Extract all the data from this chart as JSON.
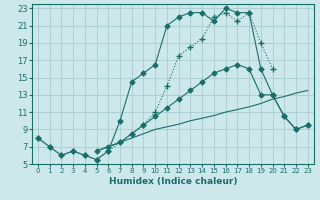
{
  "xlabel": "Humidex (Indice chaleur)",
  "bg_color": "#cce8ea",
  "grid_color": "#aaccce",
  "line_color": "#1a6e6a",
  "xlim": [
    -0.5,
    23.5
  ],
  "ylim": [
    5,
    23.5
  ],
  "xticks": [
    0,
    1,
    2,
    3,
    4,
    5,
    6,
    7,
    8,
    9,
    10,
    11,
    12,
    13,
    14,
    15,
    16,
    17,
    18,
    19,
    20,
    21,
    22,
    23
  ],
  "yticks": [
    5,
    7,
    9,
    11,
    13,
    15,
    17,
    19,
    21,
    23
  ],
  "lines": [
    {
      "x": [
        0,
        1,
        2,
        3,
        4,
        5,
        6,
        7,
        8,
        9,
        10,
        11,
        12,
        13,
        14,
        15,
        16,
        17,
        18,
        19,
        20
      ],
      "y": [
        8,
        7,
        6,
        6.5,
        6,
        5.5,
        6.5,
        7.5,
        8.5,
        9.5,
        11,
        14,
        17.5,
        18.5,
        19.5,
        22,
        22.5,
        21.5,
        22.5,
        19,
        16
      ],
      "linestyle": "dotted",
      "marker": "+",
      "markersize": 4
    },
    {
      "x": [
        0,
        1,
        2,
        3,
        4,
        5,
        6,
        7,
        8,
        9,
        10,
        11,
        12,
        13,
        14,
        15,
        16,
        17,
        18,
        19,
        20,
        21,
        22,
        23
      ],
      "y": [
        8,
        7,
        6,
        6.5,
        6,
        5.5,
        6.5,
        10,
        14.5,
        15.5,
        16.5,
        21,
        22,
        22.5,
        22.5,
        21.5,
        23,
        22.5,
        22.5,
        16,
        13,
        10.5,
        9,
        9.5
      ],
      "linestyle": "solid",
      "marker": "D",
      "markersize": 2.5
    },
    {
      "x": [
        5,
        6,
        7,
        8,
        9,
        10,
        11,
        12,
        13,
        14,
        15,
        16,
        17,
        18,
        19,
        20,
        21,
        22,
        23
      ],
      "y": [
        6.5,
        7,
        7.5,
        8,
        8.5,
        9,
        9.3,
        9.6,
        10,
        10.3,
        10.6,
        11,
        11.3,
        11.6,
        12,
        12.5,
        12.8,
        13.2,
        13.5
      ],
      "linestyle": "solid",
      "marker": null,
      "markersize": 0
    },
    {
      "x": [
        5,
        6,
        7,
        8,
        9,
        10,
        11,
        12,
        13,
        14,
        15,
        16,
        17,
        18,
        19,
        20,
        21,
        22,
        23
      ],
      "y": [
        6.5,
        7,
        7.5,
        8.5,
        9.5,
        10.5,
        11.5,
        12.5,
        13.5,
        14.5,
        15.5,
        16,
        16.5,
        16,
        13,
        13,
        10.5,
        9,
        9.5
      ],
      "linestyle": "solid",
      "marker": "D",
      "markersize": 2.5
    }
  ]
}
